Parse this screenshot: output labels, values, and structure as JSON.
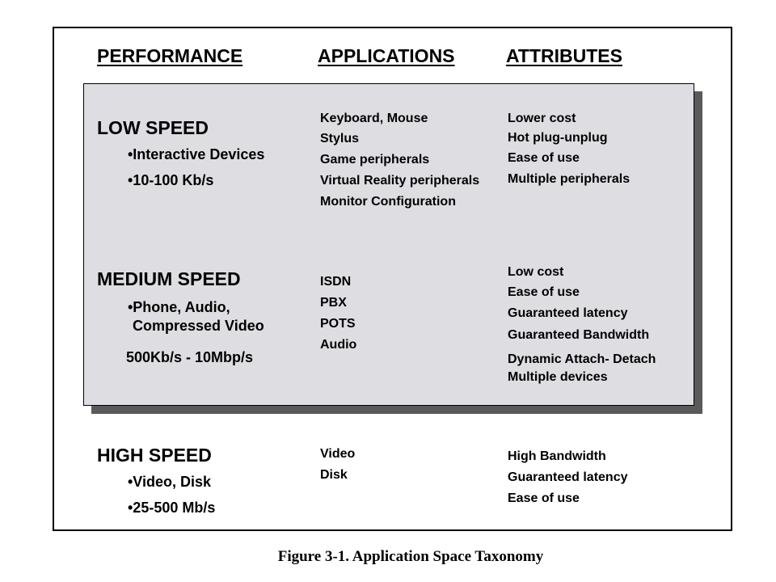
{
  "headers": {
    "performance": "PERFORMANCE",
    "applications": "APPLICATIONS",
    "attributes": "ATTRIBUTES"
  },
  "low": {
    "title": "LOW SPEED",
    "bullets": [
      "•Interactive Devices",
      "•10-100 Kb/s"
    ],
    "applications": [
      "Keyboard, Mouse",
      "Stylus",
      "Game peripherals",
      "Virtual Reality peripherals",
      "Monitor Configuration"
    ],
    "attributes": [
      "Lower cost",
      "Hot plug-unplug",
      "Ease of use",
      "Multiple peripherals"
    ]
  },
  "medium": {
    "title": "MEDIUM SPEED",
    "bullets": [
      "•Phone, Audio,",
      "Compressed Video"
    ],
    "rate": "500Kb/s - 10Mbp/s",
    "applications": [
      "ISDN",
      "PBX",
      "POTS",
      "Audio"
    ],
    "attributes": [
      "Low cost",
      "Ease of use",
      "Guaranteed latency",
      "Guaranteed Bandwidth",
      "Dynamic Attach- Detach",
      "Multiple devices"
    ]
  },
  "high": {
    "title": "HIGH SPEED",
    "bullets": [
      "•Video, Disk",
      "•25-500 Mb/s"
    ],
    "applications": [
      "Video",
      "Disk"
    ],
    "attributes": [
      "High Bandwidth",
      "Guaranteed latency",
      "Ease of use"
    ]
  },
  "caption": "Figure 3-1.  Application Space Taxonomy",
  "colors": {
    "panel_fill": "#dedee2",
    "panel_shadow": "#5a5a5a",
    "border": "#000000"
  }
}
